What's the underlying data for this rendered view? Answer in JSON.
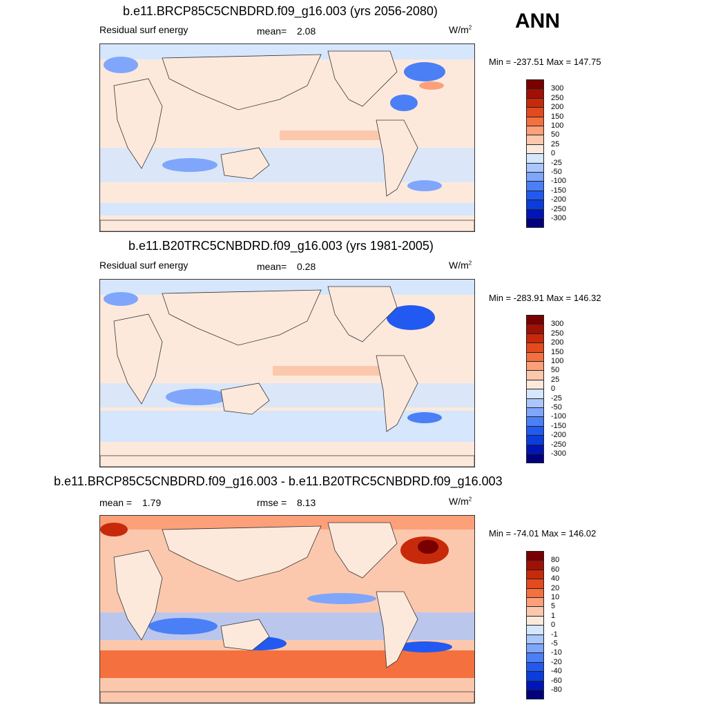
{
  "season": "ANN",
  "palette": {
    "diverging": [
      "#000080",
      "#0015b8",
      "#0a3ddc",
      "#2259f0",
      "#4a7ff6",
      "#7fa6fb",
      "#aac6fd",
      "#d5e6fd",
      "#fde9dc",
      "#fcc8ad",
      "#fca07a",
      "#f4703f",
      "#e34a1e",
      "#c72a0a",
      "#a01005",
      "#780000"
    ]
  },
  "panels": [
    {
      "title": "b.e11.BRCP85C5CNBDRD.f09_g16.003 (yrs 2056-2080)",
      "left_label": "Residual surf energy",
      "stat_label": "mean=",
      "stat_value": "2.08",
      "stat2_label": "",
      "stat2_value": "",
      "units": "W/m",
      "units_sup": "2",
      "minmax": "Min = -237.51 Max = 147.75",
      "colorbar_labels": [
        "300",
        "250",
        "200",
        "150",
        "100",
        "50",
        "25",
        "0",
        "-25",
        "-50",
        "-100",
        "-150",
        "-200",
        "-250",
        "-300"
      ]
    },
    {
      "title": "b.e11.B20TRC5CNBDRD.f09_g16.003 (yrs 1981-2005)",
      "left_label": "Residual surf energy",
      "stat_label": "mean=",
      "stat_value": "0.28",
      "stat2_label": "",
      "stat2_value": "",
      "units": "W/m",
      "units_sup": "2",
      "minmax": "Min = -283.91 Max = 146.32",
      "colorbar_labels": [
        "300",
        "250",
        "200",
        "150",
        "100",
        "50",
        "25",
        "0",
        "-25",
        "-50",
        "-100",
        "-150",
        "-200",
        "-250",
        "-300"
      ]
    },
    {
      "title": "b.e11.BRCP85C5CNBDRD.f09_g16.003 - b.e11.B20TRC5CNBDRD.f09_g16.003",
      "left_label": "mean =",
      "stat_label": "",
      "stat_value": "1.79",
      "stat2_label": "rmse =",
      "stat2_value": "8.13",
      "units": "W/m",
      "units_sup": "2",
      "minmax": "Min = -74.01 Max = 146.02",
      "colorbar_labels": [
        "80",
        "60",
        "40",
        "20",
        "10",
        "5",
        "1",
        "0",
        "-1",
        "-5",
        "-10",
        "-20",
        "-40",
        "-60",
        "-80"
      ]
    }
  ]
}
